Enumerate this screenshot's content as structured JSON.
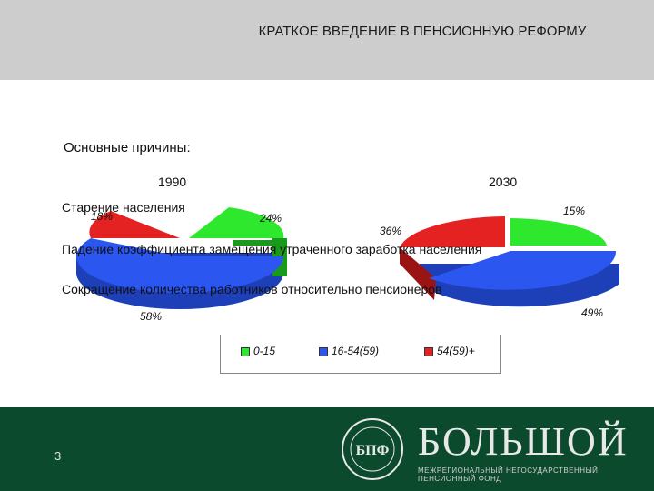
{
  "slide": {
    "title": "КРАТКОЕ ВВЕДЕНИЕ В ПЕНСИОННУЮ РЕФОРМУ",
    "subtitle": "Основные причины:",
    "reasons": [
      "Старение населения",
      "Падение коэффициента замещения утраченного заработка населения",
      "Сокращение количества работников относительно пенсионеров"
    ],
    "page_number": "3"
  },
  "footer": {
    "brand_name": "БОЛЬШОЙ",
    "brand_tagline": "МЕЖРЕГИОНАЛЬНЫЙ НЕГОСУДАРСТВЕННЫЙ ПЕНСИОННЫЙ ФОНД",
    "logo_text": "БПФ",
    "colors": {
      "footer_bg": "#0c4a2e",
      "header_bg": "#cdcdcd"
    }
  },
  "chart_data": [
    {
      "type": "pie",
      "title": "1990",
      "categories": [
        "0-15",
        "16-54(59)",
        "54(59)+"
      ],
      "values": [
        24,
        58,
        18
      ],
      "value_labels": [
        "24%",
        "58%",
        "18%"
      ],
      "colors": [
        "#2ee82e",
        "#2b56f0",
        "#e52222"
      ],
      "legend_placement": "bottom"
    },
    {
      "type": "pie",
      "title": "2030",
      "categories": [
        "0-15",
        "16-54(59)",
        "54(59)+"
      ],
      "values": [
        15,
        49,
        36
      ],
      "value_labels": [
        "15%",
        "49%",
        "36%"
      ],
      "colors": [
        "#2ee82e",
        "#2b56f0",
        "#e52222"
      ],
      "legend_placement": "bottom"
    }
  ]
}
